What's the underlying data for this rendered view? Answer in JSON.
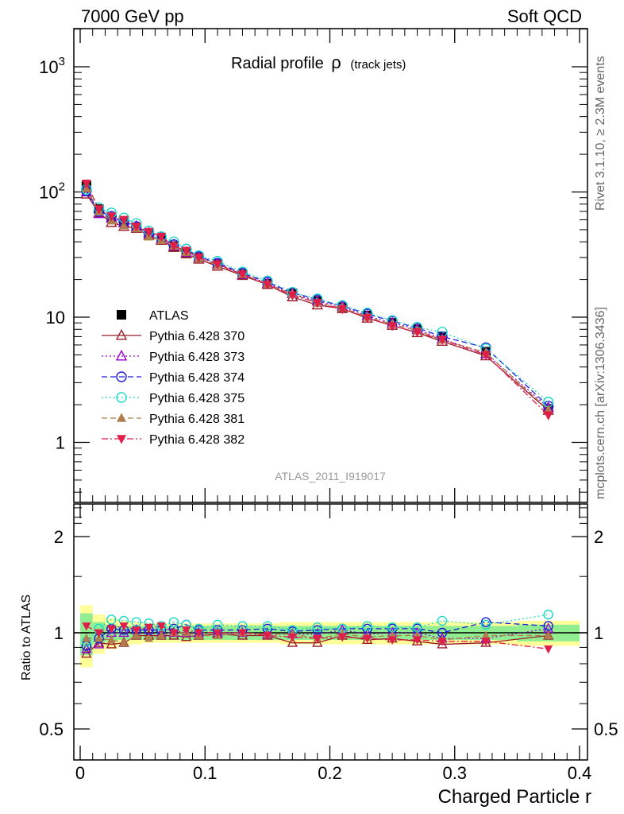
{
  "header": {
    "left": "7000 GeV pp",
    "right": "Soft QCD"
  },
  "side_labels": {
    "rivet": "Rivet 3.1.10, ≥ 2.3M events",
    "mcplots": "mcplots.cern.ch [arXiv:1306.3436]"
  },
  "watermark": "ATLAS_2011_I919017",
  "colors": {
    "ATLAS": "#000000",
    "p370": "#9b1b2a",
    "p373": "#9400d3",
    "p374": "#1c1cd9",
    "p375": "#1ed8c8",
    "p381": "#b07d4e",
    "p382": "#e01e4a",
    "band_stat": "#90ee90",
    "band_tot": "#ffff99"
  },
  "chart_data": [
    {
      "type": "line",
      "title": "Radial profile",
      "title_symbol": "ρ",
      "title_suffix": "(track jets)",
      "xlabel": "Charged Particle r",
      "ylabel": "",
      "xlim": [
        0,
        0.4
      ],
      "ylim": [
        0.3,
        2000
      ],
      "yscale": "log",
      "y_ticks": [
        "1",
        "10",
        "10²",
        "10³"
      ],
      "x": [
        0.005,
        0.015,
        0.025,
        0.035,
        0.045,
        0.055,
        0.065,
        0.075,
        0.085,
        0.095,
        0.11,
        0.13,
        0.15,
        0.17,
        0.19,
        0.21,
        0.23,
        0.25,
        0.27,
        0.29,
        0.325,
        0.375
      ],
      "legend_position": "lower-left",
      "series": [
        {
          "name": "ATLAS",
          "values": [
            112,
            73,
            62,
            57,
            52,
            46,
            42,
            37,
            33,
            30,
            26.5,
            22,
            18.5,
            15.5,
            13.5,
            12,
            10.3,
            9,
            8,
            7,
            5.3,
            1.85
          ]
        },
        {
          "name": "Pythia 6.428 370",
          "values": [
            96,
            68,
            57,
            53,
            51,
            45,
            41,
            36,
            32,
            29,
            25.5,
            21.5,
            18.2,
            14.5,
            12.5,
            11.7,
            9.8,
            8.6,
            7.5,
            6.4,
            4.9,
            1.8
          ]
        },
        {
          "name": "Pythia 6.428 373",
          "values": [
            100,
            67,
            62,
            57,
            53,
            47,
            42,
            37,
            33,
            30,
            26.5,
            22,
            18.6,
            15.4,
            13.4,
            12.2,
            10.2,
            9,
            8,
            6.7,
            5.1,
            1.9
          ]
        },
        {
          "name": "Pythia 6.428 374",
          "values": [
            102,
            70,
            64,
            58,
            53,
            47,
            43,
            38,
            35,
            30.5,
            27,
            22.5,
            19,
            15.7,
            13.8,
            12.3,
            10.6,
            9.3,
            8.2,
            7,
            5.7,
            1.95
          ]
        },
        {
          "name": "Pythia 6.428 375",
          "values": [
            105,
            75,
            68,
            62,
            56,
            49,
            44,
            40,
            35,
            31,
            28,
            23,
            19.5,
            15.8,
            14,
            12.4,
            10.8,
            9.4,
            8.3,
            7.6,
            5.6,
            2.1
          ]
        },
        {
          "name": "Pythia 6.428 381",
          "values": [
            107,
            70,
            59,
            54,
            51,
            44,
            41,
            37,
            33,
            29.5,
            26,
            22,
            18.4,
            15.3,
            13,
            11.9,
            10,
            8.8,
            7.8,
            6.6,
            5.2,
            1.82
          ]
        },
        {
          "name": "Pythia 6.428 382",
          "values": [
            117,
            73,
            64,
            60,
            53,
            48,
            44,
            37,
            34,
            30,
            26.5,
            22,
            18.2,
            15,
            13,
            11.6,
            9.9,
            8.5,
            7.6,
            6.6,
            5,
            1.65
          ]
        }
      ]
    },
    {
      "type": "line",
      "title": "",
      "xlabel": "Charged Particle r",
      "ylabel": "Ratio to ATLAS",
      "xlim": [
        0,
        0.4
      ],
      "ylim": [
        0.4,
        2.4
      ],
      "yscale": "log",
      "y_ticks": [
        "0.5",
        "1",
        "2"
      ],
      "x_ticks": [
        "0",
        "0.1",
        "0.2",
        "0.3",
        "0.4"
      ],
      "reference_line": 1,
      "band_stat": [
        0.15,
        0.08,
        0.06,
        0.05,
        0.05,
        0.05,
        0.05,
        0.05,
        0.05,
        0.05,
        0.05,
        0.05,
        0.05,
        0.05,
        0.05,
        0.05,
        0.05,
        0.05,
        0.05,
        0.05,
        0.05,
        0.06
      ],
      "band_total": [
        0.22,
        0.14,
        0.11,
        0.09,
        0.08,
        0.07,
        0.07,
        0.07,
        0.07,
        0.07,
        0.07,
        0.07,
        0.07,
        0.08,
        0.08,
        0.08,
        0.08,
        0.08,
        0.08,
        0.08,
        0.08,
        0.09
      ],
      "series": [
        {
          "name": "Pythia 6.428 370",
          "values": [
            0.86,
            0.93,
            0.92,
            0.93,
            0.98,
            0.98,
            0.98,
            0.98,
            0.97,
            0.98,
            0.99,
            0.98,
            0.98,
            0.93,
            0.93,
            0.98,
            0.95,
            0.96,
            0.94,
            0.92,
            0.93,
            0.98
          ]
        },
        {
          "name": "Pythia 6.428 373",
          "values": [
            0.89,
            0.92,
            1.0,
            1.0,
            1.02,
            1.02,
            1.0,
            1.0,
            1.0,
            1.0,
            1.0,
            1.0,
            0.99,
            0.99,
            0.99,
            1.02,
            0.99,
            1.0,
            1.0,
            0.96,
            0.96,
            1.03
          ]
        },
        {
          "name": "Pythia 6.428 374",
          "values": [
            0.91,
            0.96,
            1.03,
            1.02,
            1.02,
            1.02,
            1.02,
            1.03,
            1.06,
            1.02,
            1.02,
            1.02,
            1.03,
            1.01,
            1.02,
            1.03,
            1.03,
            1.03,
            1.03,
            1.0,
            1.08,
            1.05
          ]
        },
        {
          "name": "Pythia 6.428 375",
          "values": [
            0.94,
            1.03,
            1.1,
            1.09,
            1.08,
            1.07,
            1.05,
            1.08,
            1.06,
            1.03,
            1.06,
            1.05,
            1.05,
            1.02,
            1.04,
            1.03,
            1.05,
            1.04,
            1.04,
            1.09,
            1.06,
            1.14
          ]
        },
        {
          "name": "Pythia 6.428 381",
          "values": [
            0.96,
            0.96,
            0.95,
            0.93,
            0.98,
            0.96,
            0.98,
            1.0,
            1.0,
            0.98,
            0.98,
            1.0,
            0.99,
            0.99,
            0.96,
            0.99,
            0.97,
            0.98,
            0.98,
            0.95,
            0.98,
            0.98
          ]
        },
        {
          "name": "Pythia 6.428 382",
          "values": [
            1.05,
            1.0,
            1.03,
            1.05,
            1.02,
            1.04,
            1.05,
            1.0,
            1.02,
            1.0,
            1.0,
            1.0,
            0.98,
            0.97,
            0.96,
            0.97,
            0.96,
            0.95,
            0.95,
            0.94,
            0.94,
            0.89
          ]
        }
      ]
    }
  ]
}
